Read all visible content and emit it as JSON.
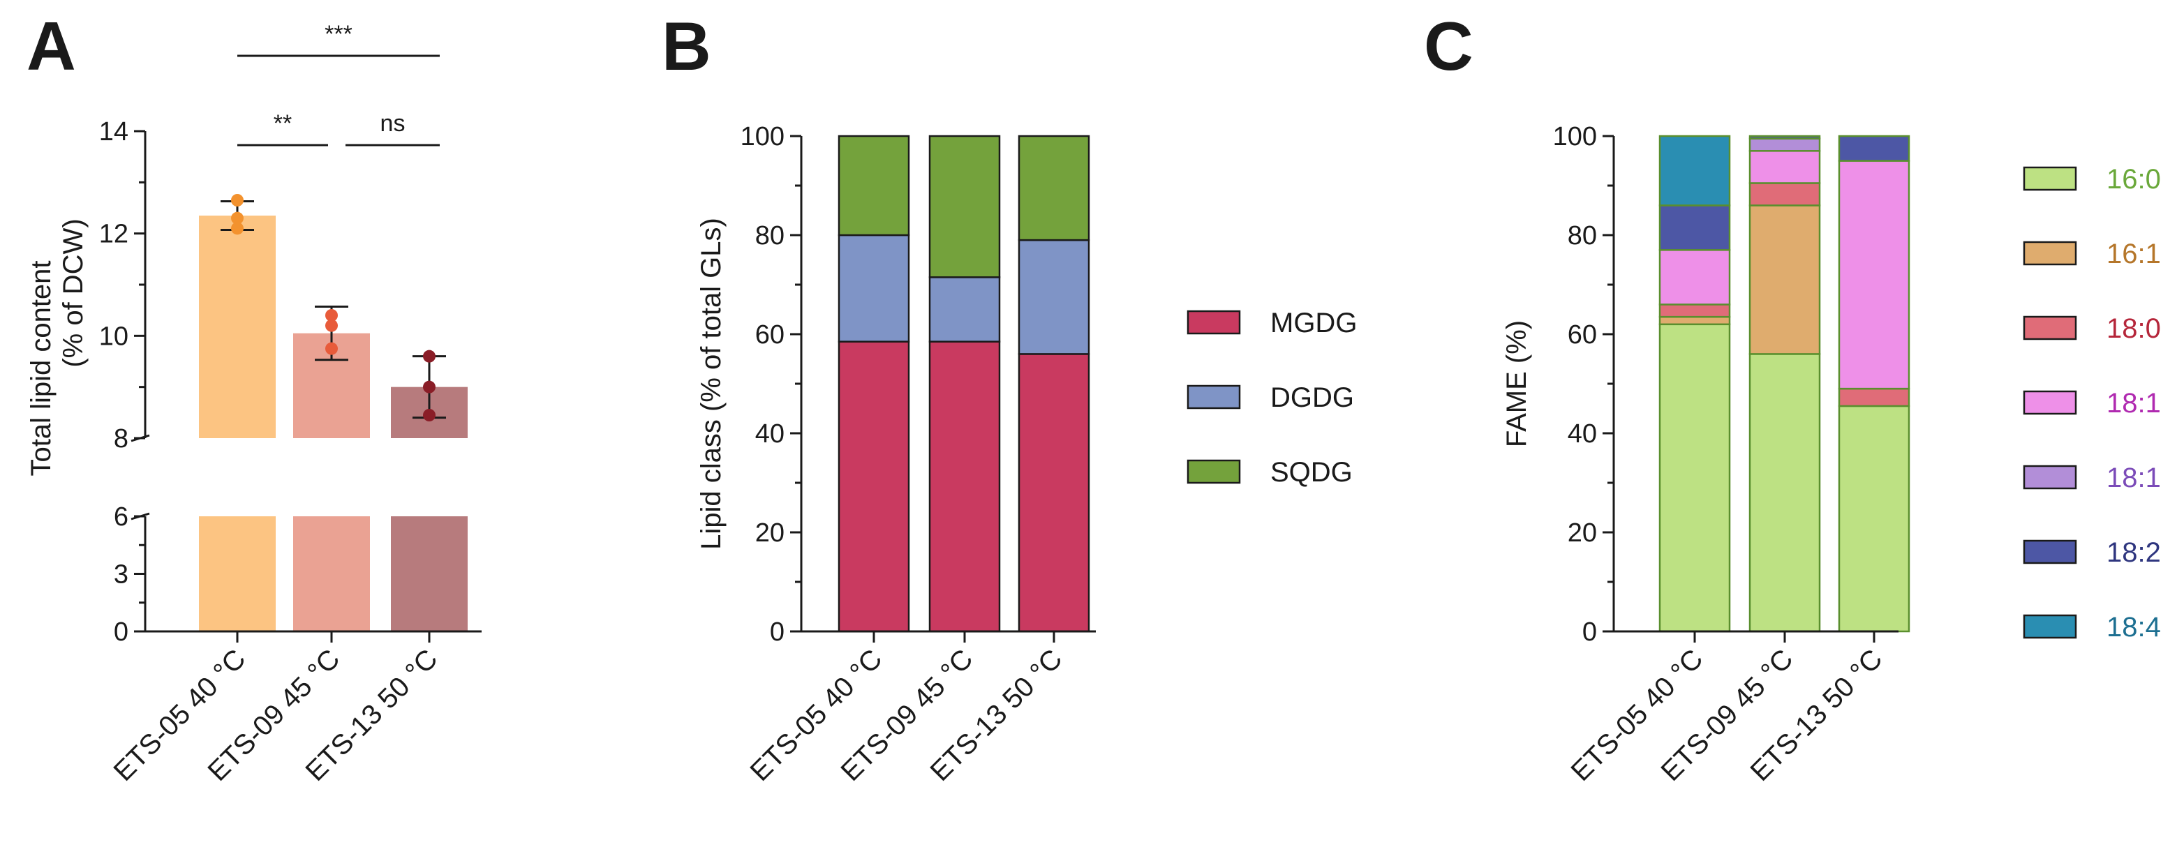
{
  "panels": {
    "a": {
      "letter": "A"
    },
    "b": {
      "letter": "B"
    },
    "c": {
      "letter": "C"
    }
  },
  "chart_data": [
    {
      "id": "A",
      "type": "bar",
      "ylabel_line1": "Total lipid content",
      "ylabel_line2": "(% of DCW)",
      "categories": [
        "ETS-05 40 °C",
        "ETS-09 45 °C",
        "ETS-13 50 °C"
      ],
      "values": [
        12.35,
        10.05,
        9.0
      ],
      "errors": [
        0.28,
        0.52,
        0.6
      ],
      "points": [
        [
          12.65,
          12.3,
          12.1
        ],
        [
          10.4,
          10.2,
          9.75
        ],
        [
          9.6,
          9.0,
          8.45
        ]
      ],
      "bar_colors": [
        "#fcc482",
        "#eaa293",
        "#b77b7d"
      ],
      "point_colors": [
        "#f3922e",
        "#e85b3a",
        "#8a1d27"
      ],
      "broken_axis": {
        "lower": {
          "range": [
            0,
            6
          ],
          "ticks": [
            0,
            3,
            6
          ]
        },
        "upper": {
          "range": [
            8,
            14
          ],
          "ticks": [
            8,
            10,
            12,
            14
          ]
        }
      },
      "significance": [
        {
          "from": 0,
          "to": 1,
          "label": "**"
        },
        {
          "from": 1,
          "to": 2,
          "label": "ns"
        },
        {
          "from": 0,
          "to": 2,
          "label": "***"
        }
      ]
    },
    {
      "id": "B",
      "type": "bar",
      "stacked": true,
      "ylabel": "Lipid class (% of total GLs)",
      "ylim": [
        0,
        100
      ],
      "yticks": [
        0,
        20,
        40,
        60,
        80,
        100
      ],
      "categories": [
        "ETS-05 40 °C",
        "ETS-09 45 °C",
        "ETS-13 50 °C"
      ],
      "series": [
        {
          "name": "MGDG",
          "color": "#c93a60",
          "values": [
            58.5,
            58.5,
            56.0
          ]
        },
        {
          "name": "DGDG",
          "color": "#7f94c6",
          "values": [
            21.5,
            13.0,
            23.0
          ]
        },
        {
          "name": "SQDG",
          "color": "#74a23c",
          "values": [
            20.0,
            28.5,
            21.0
          ]
        }
      ]
    },
    {
      "id": "C",
      "type": "bar",
      "stacked": true,
      "ylabel": "FAME (%)",
      "ylim": [
        0,
        100
      ],
      "yticks": [
        0,
        20,
        40,
        60,
        80,
        100
      ],
      "categories": [
        "ETS-05 40 °C",
        "ETS-09 45 °C",
        "ETS-13 50 °C"
      ],
      "series": [
        {
          "name": "16:0",
          "color": "#bde183",
          "label_color": "#6aa83a",
          "values": [
            62.0,
            56.0,
            45.5
          ]
        },
        {
          "name": "16:1",
          "color": "#dfac6e",
          "label_color": "#b5762a",
          "values": [
            1.5,
            30.0,
            0.0
          ]
        },
        {
          "name": "18:0",
          "color": "#e06c78",
          "label_color": "#b5263a",
          "values": [
            2.5,
            4.5,
            3.5
          ]
        },
        {
          "name": "18:1",
          "color": "#ee90e8",
          "label_color": "#b02ab0",
          "values": [
            11.0,
            6.5,
            46.0
          ]
        },
        {
          "name": "18:1",
          "color": "#b28ed8",
          "label_color": "#7b4bb8",
          "values": [
            0.0,
            2.5,
            0.0
          ]
        },
        {
          "name": "18:2",
          "color": "#4d57a5",
          "label_color": "#2f367f",
          "values": [
            9.0,
            0.5,
            5.0
          ]
        },
        {
          "name": "18:4",
          "color": "#2a8eb2",
          "label_color": "#1d6f91",
          "values": [
            14.0,
            0.0,
            0.0
          ]
        }
      ]
    }
  ]
}
